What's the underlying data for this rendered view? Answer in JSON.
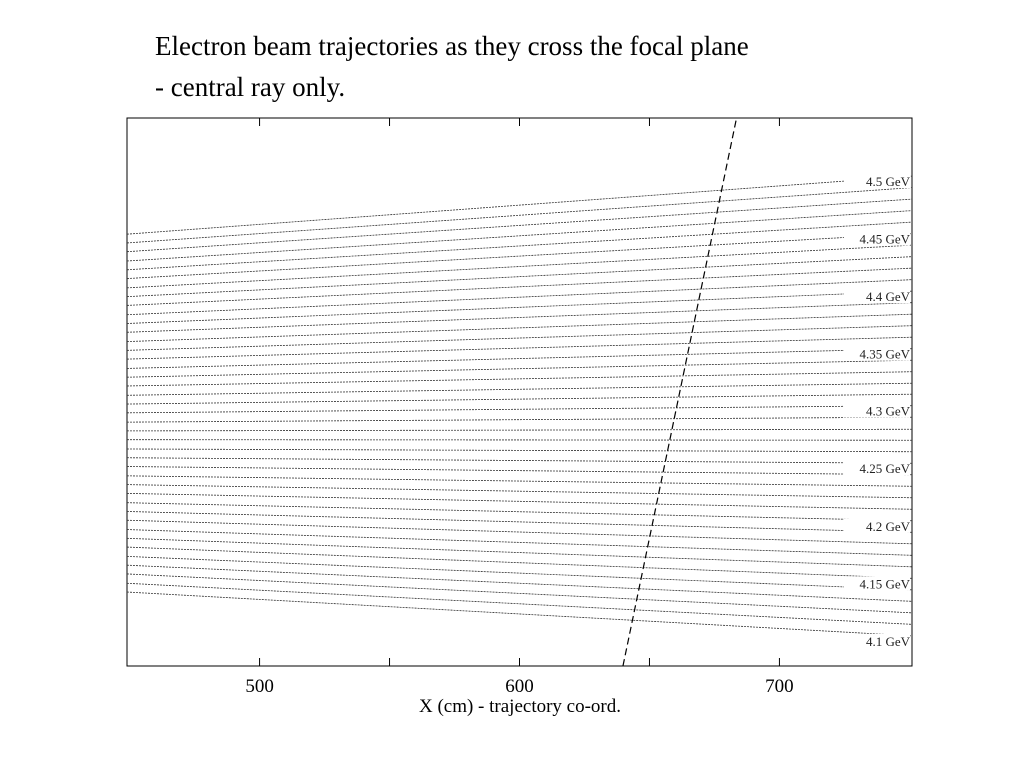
{
  "chart_data": {
    "type": "line",
    "title": [
      "Electron beam trajectories as they cross the focal plane",
      "- central ray only."
    ],
    "xlabel": "X (cm) - trajectory co-ord.",
    "xlim": [
      449,
      751
    ],
    "ylim": [
      0,
      100
    ],
    "xticks": [
      500,
      600,
      700
    ],
    "xminor": [
      550,
      650
    ],
    "color": "#333333",
    "x": [
      449,
      751
    ],
    "series": [
      {
        "name": "4.1 GeV",
        "values": [
          13.5,
          5.5
        ]
      },
      {
        "values": [
          15.1,
          7.6
        ]
      },
      {
        "values": [
          16.8,
          9.7
        ]
      },
      {
        "values": [
          18.4,
          11.8
        ]
      },
      {
        "values": [
          20.0,
          13.9
        ]
      },
      {
        "name": "4.15 GeV",
        "values": [
          21.7,
          16.0
        ]
      },
      {
        "values": [
          23.3,
          18.1
        ]
      },
      {
        "values": [
          24.9,
          20.2
        ]
      },
      {
        "values": [
          26.6,
          22.3
        ]
      },
      {
        "values": [
          28.2,
          24.4
        ]
      },
      {
        "name": "4.2 GeV",
        "values": [
          29.8,
          26.5
        ]
      },
      {
        "values": [
          31.5,
          28.6
        ]
      },
      {
        "values": [
          33.1,
          30.7
        ]
      },
      {
        "values": [
          34.7,
          32.8
        ]
      },
      {
        "values": [
          36.4,
          34.9
        ]
      },
      {
        "name": "4.25 GeV",
        "values": [
          38.0,
          37.0
        ]
      },
      {
        "values": [
          39.6,
          39.1
        ]
      },
      {
        "values": [
          41.3,
          41.2
        ]
      },
      {
        "values": [
          42.9,
          43.2
        ]
      },
      {
        "values": [
          44.5,
          45.4
        ]
      },
      {
        "name": "4.3 GeV",
        "values": [
          46.2,
          47.5
        ]
      },
      {
        "values": [
          47.8,
          49.6
        ]
      },
      {
        "values": [
          49.4,
          51.6
        ]
      },
      {
        "values": [
          51.1,
          53.7
        ]
      },
      {
        "values": [
          52.7,
          55.8
        ]
      },
      {
        "name": "4.35 GeV",
        "values": [
          54.3,
          57.9
        ]
      },
      {
        "values": [
          56.0,
          60.0
        ]
      },
      {
        "values": [
          57.6,
          62.1
        ]
      },
      {
        "values": [
          59.2,
          64.2
        ]
      },
      {
        "values": [
          60.9,
          66.3
        ]
      },
      {
        "name": "4.4 GeV",
        "values": [
          62.5,
          68.4
        ]
      },
      {
        "values": [
          64.1,
          70.5
        ]
      },
      {
        "values": [
          65.8,
          72.6
        ]
      },
      {
        "values": [
          67.4,
          74.7
        ]
      },
      {
        "values": [
          69.0,
          76.8
        ]
      },
      {
        "name": "4.45 GeV",
        "values": [
          70.7,
          78.9
        ]
      },
      {
        "values": [
          72.3,
          81.0
        ]
      },
      {
        "values": [
          73.9,
          83.1
        ]
      },
      {
        "values": [
          75.6,
          85.2
        ]
      },
      {
        "values": [
          77.2,
          87.3
        ]
      },
      {
        "name": "4.5 GeV",
        "values": [
          78.8,
          89.4
        ]
      }
    ],
    "focal_plane": {
      "x": [
        639.8,
        683.5
      ],
      "values": [
        0,
        100
      ]
    }
  }
}
